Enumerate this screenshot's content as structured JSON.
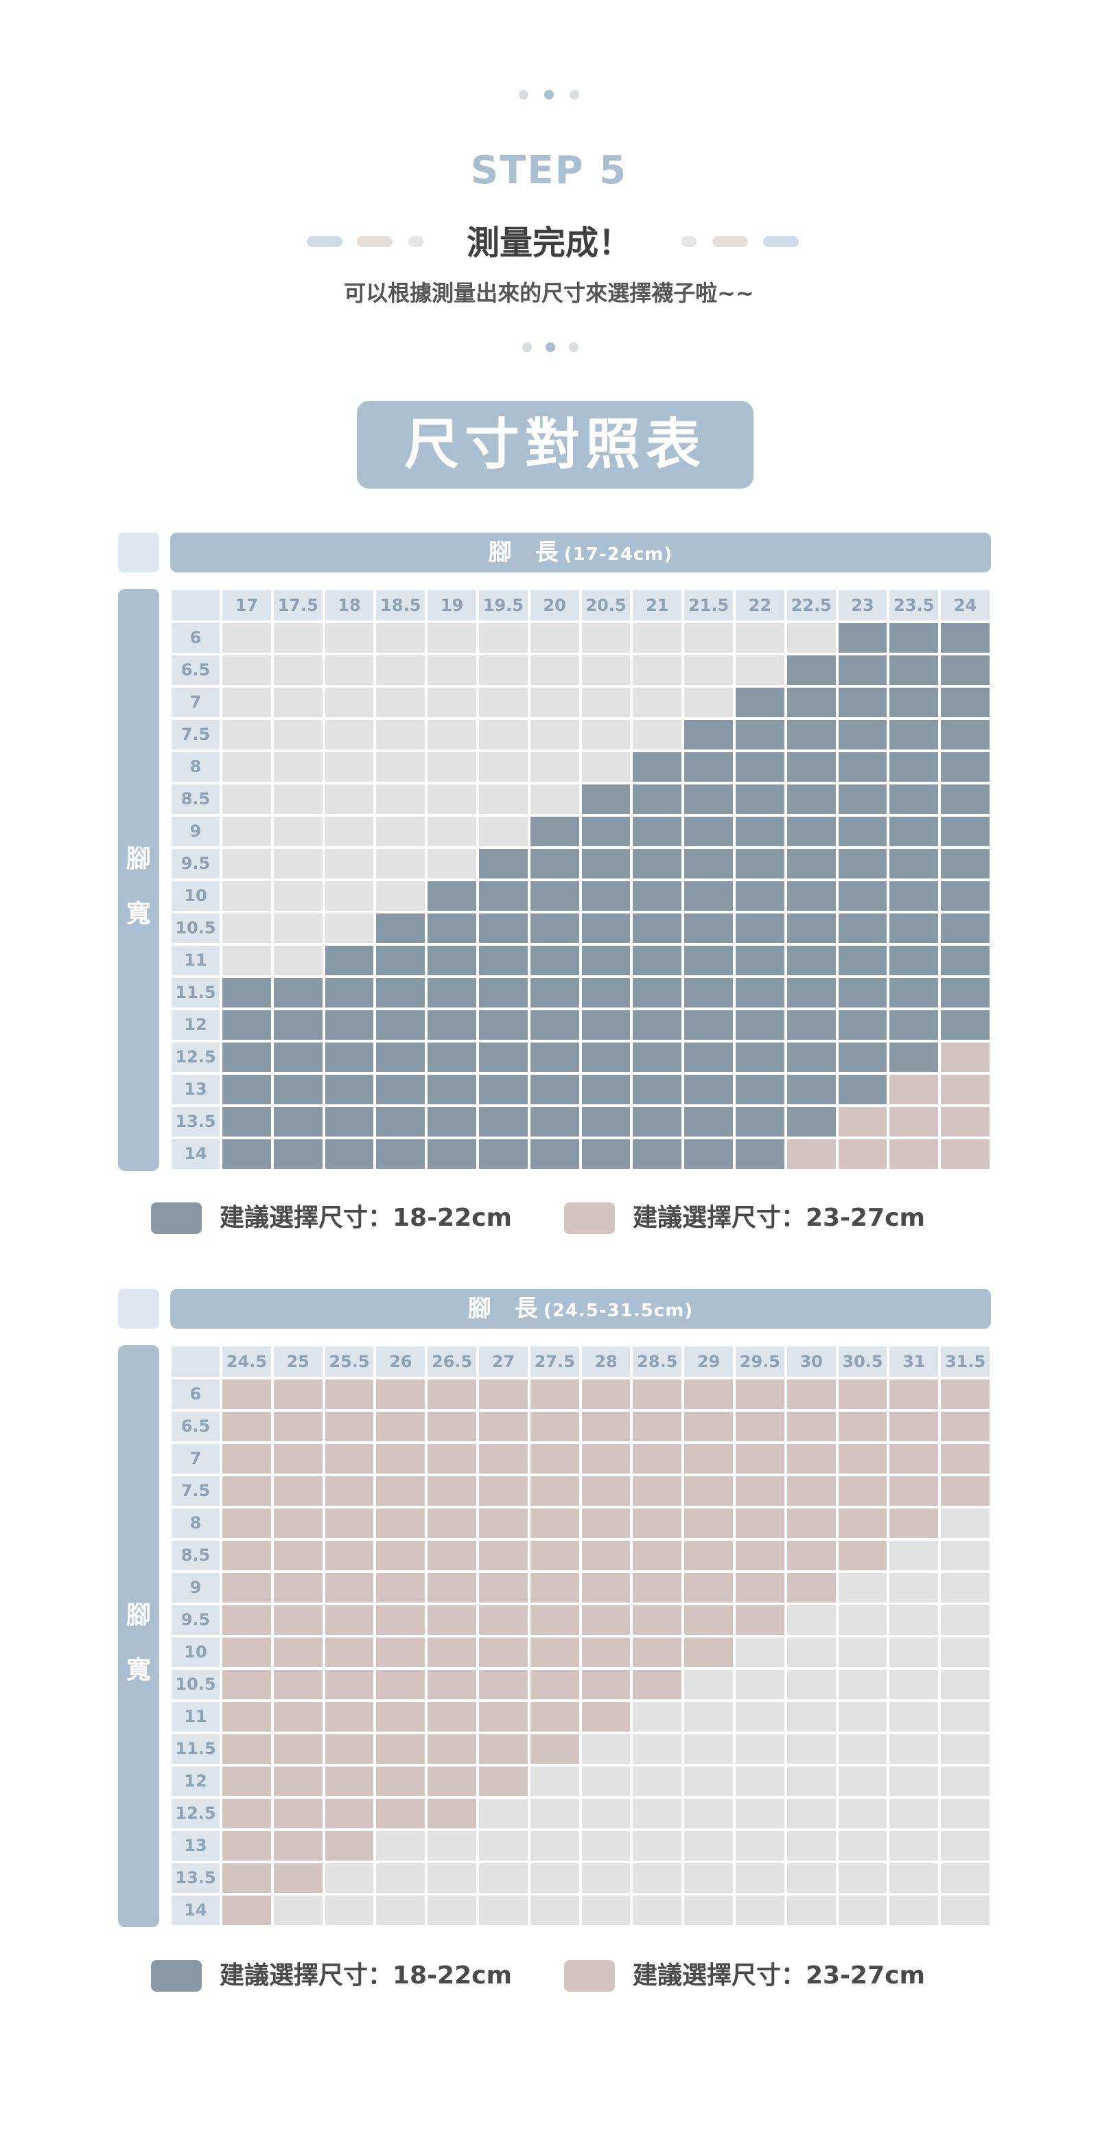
{
  "step": {
    "label": "STEP 5",
    "title": "測量完成！",
    "subtitle": "可以根據測量出來的尺寸來選擇襪子啦~~"
  },
  "banner": "尺寸對照表",
  "colors": {
    "dark": "#8799a5",
    "pink": "#d3c4c1",
    "light": "#e2e2e2",
    "header": "#aabfcf",
    "header_cell": "#dde5ec",
    "header_text": "#8ea2b3",
    "dot_light": "#d9dde2",
    "dot_mid": "#a9bfcf"
  },
  "tables": [
    {
      "length_title": "腳　長",
      "length_range": "(17-24cm)",
      "width_title_lines": [
        "腳",
        "寬"
      ],
      "columns": [
        "17",
        "17.5",
        "18",
        "18.5",
        "19",
        "19.5",
        "20",
        "20.5",
        "21",
        "21.5",
        "22",
        "22.5",
        "23",
        "23.5",
        "24"
      ],
      "rows": [
        "6",
        "6.5",
        "7",
        "7.5",
        "8",
        "8.5",
        "9",
        "9.5",
        "10",
        "10.5",
        "11",
        "11.5",
        "12",
        "12.5",
        "13",
        "13.5",
        "14"
      ],
      "grid": [
        "LLLLLLLLLLLLDDD",
        "LLLLLLLLLLLDDDD",
        "LLLLLLLLLLDDDDD",
        "LLLLLLLLLDDDDDD",
        "LLLLLLLLDDDDDDD",
        "LLLLLLLDDDDDDDD",
        "LLLLLLDDDDDDDDD",
        "LLLLLDDDDDDDDDD",
        "LLLLDDDDDDDDDDD",
        "LLLDDDDDDDDDDDD",
        "LLDDDDDDDDDDDDD",
        "DDDDDDDDDDDDDDD",
        "DDDDDDDDDDDDDDD",
        "DDDDDDDDDDDDDDP",
        "DDDDDDDDDDDDDPP",
        "DDDDDDDDDDDDPPP",
        "DDDDDDDDDDDPPPP"
      ],
      "legend": [
        {
          "color": "dark",
          "label": "建議選擇尺寸：18-22cm"
        },
        {
          "color": "pink",
          "label": "建議選擇尺寸：23-27cm"
        }
      ]
    },
    {
      "length_title": "腳　長",
      "length_range": "(24.5-31.5cm)",
      "width_title_lines": [
        "腳",
        "寬"
      ],
      "columns": [
        "24.5",
        "25",
        "25.5",
        "26",
        "26.5",
        "27",
        "27.5",
        "28",
        "28.5",
        "29",
        "29.5",
        "30",
        "30.5",
        "31",
        "31.5"
      ],
      "rows": [
        "6",
        "6.5",
        "7",
        "7.5",
        "8",
        "8.5",
        "9",
        "9.5",
        "10",
        "10.5",
        "11",
        "11.5",
        "12",
        "12.5",
        "13",
        "13.5",
        "14"
      ],
      "grid": [
        "PPPPPPPPPPPPPPP",
        "PPPPPPPPPPPPPPP",
        "PPPPPPPPPPPPPPP",
        "PPPPPPPPPPPPPPP",
        "PPPPPPPPPPPPPPL",
        "PPPPPPPPPPPPPLL",
        "PPPPPPPPPPPPLLL",
        "PPPPPPPPPPPLLLL",
        "PPPPPPPPPPLLLLL",
        "PPPPPPPPPLLLLLL",
        "PPPPPPPPLLLLLLL",
        "PPPPPPPLLLLLLLL",
        "PPPPPPLLLLLLLLL",
        "PPPPPLLLLLLLLLL",
        "PPPLLLLLLLLLLLL",
        "PPLLLLLLLLLLLLL",
        "PLLLLLLLLLLLLLL"
      ],
      "legend": [
        {
          "color": "dark",
          "label": "建議選擇尺寸：18-22cm"
        },
        {
          "color": "pink",
          "label": "建議選擇尺寸：23-27cm"
        }
      ]
    }
  ]
}
